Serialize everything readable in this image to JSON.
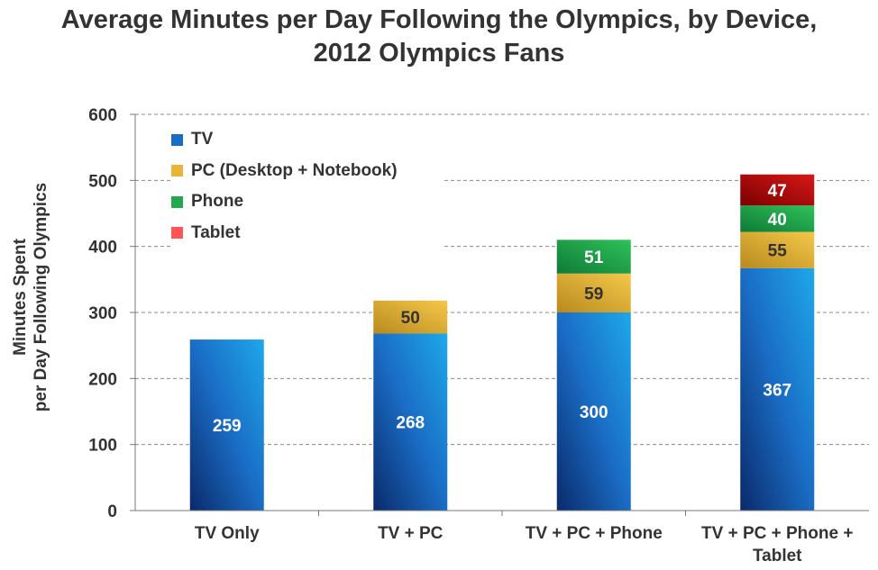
{
  "chart_data": {
    "type": "bar",
    "stacked": true,
    "title_lines": [
      "Average Minutes per Day Following the Olympics, by Device,",
      "2012 Olympics Fans"
    ],
    "ylabel_lines": [
      "Minutes Spent",
      "per Day Following Olympics"
    ],
    "xlabel": "",
    "ylim": [
      0,
      600
    ],
    "yticks": [
      0,
      100,
      200,
      300,
      400,
      500,
      600
    ],
    "grid": true,
    "legend_position": "top-left",
    "categories": [
      {
        "lines": [
          "TV Only"
        ]
      },
      {
        "lines": [
          "TV + PC"
        ]
      },
      {
        "lines": [
          "TV + PC + Phone"
        ]
      },
      {
        "lines": [
          "TV + PC + Phone +",
          "Tablet"
        ]
      }
    ],
    "series": [
      {
        "name": "TV",
        "color": "#1a6cc4",
        "label_color": "#ffffff",
        "values": [
          259,
          268,
          300,
          367
        ]
      },
      {
        "name": "PC (Desktop + Notebook)",
        "color": "#e9b438",
        "label_color": "#333333",
        "values": [
          null,
          50,
          59,
          55
        ]
      },
      {
        "name": "Phone",
        "color": "#23a84d",
        "label_color": "#ffffff",
        "values": [
          null,
          null,
          51,
          40
        ]
      },
      {
        "name": "Tablet",
        "color": "#c00a0a",
        "legend_color": "#ff5555",
        "label_color": "#ffffff",
        "values": [
          null,
          null,
          null,
          47
        ]
      }
    ]
  }
}
